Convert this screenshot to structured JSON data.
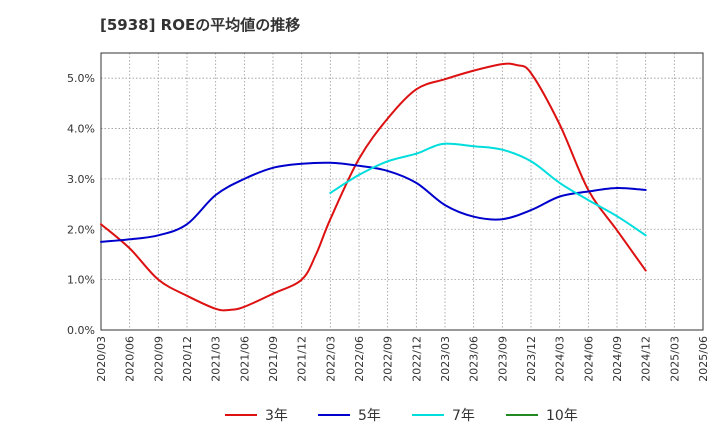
{
  "chart_data": {
    "type": "line",
    "title": "[5938]  ROEの平均値の推移",
    "xlabel": "",
    "ylabel": "",
    "ylim": [
      0,
      5.5
    ],
    "yticks": [
      0,
      1,
      2,
      3,
      4,
      5
    ],
    "ytick_labels": [
      "0.0%",
      "1.0%",
      "2.0%",
      "3.0%",
      "4.0%",
      "5.0%"
    ],
    "x_tick_labels": [
      "2020/03",
      "2020/06",
      "2020/09",
      "2020/12",
      "2021/03",
      "2021/06",
      "2021/09",
      "2021/12",
      "2022/03",
      "2022/06",
      "2022/09",
      "2022/12",
      "2023/03",
      "2023/06",
      "2023/09",
      "2023/12",
      "2024/03",
      "2024/06",
      "2024/09",
      "2024/12",
      "2025/03",
      "2025/06"
    ],
    "grid": true,
    "legend_position": "bottom",
    "series": [
      {
        "name": "3年",
        "color": "#dd1111",
        "points": [
          [
            0,
            2.1
          ],
          [
            1,
            1.62
          ],
          [
            2,
            1.0
          ],
          [
            3,
            0.68
          ],
          [
            4,
            0.42
          ],
          [
            4.5,
            0.4
          ],
          [
            5,
            0.46
          ],
          [
            6,
            0.72
          ],
          [
            7,
            1.0
          ],
          [
            7.5,
            1.5
          ],
          [
            8,
            2.2
          ],
          [
            9,
            3.4
          ],
          [
            10,
            4.2
          ],
          [
            11,
            4.78
          ],
          [
            12,
            4.98
          ],
          [
            13,
            5.15
          ],
          [
            14,
            5.28
          ],
          [
            14.5,
            5.26
          ],
          [
            15,
            5.1
          ],
          [
            16,
            4.08
          ],
          [
            17,
            2.78
          ],
          [
            18,
            1.98
          ],
          [
            19,
            1.18
          ]
        ]
      },
      {
        "name": "5年",
        "color": "#0000cc",
        "points": [
          [
            0,
            1.75
          ],
          [
            1,
            1.8
          ],
          [
            2,
            1.88
          ],
          [
            3,
            2.1
          ],
          [
            4,
            2.68
          ],
          [
            5,
            3.0
          ],
          [
            6,
            3.22
          ],
          [
            7,
            3.3
          ],
          [
            8,
            3.32
          ],
          [
            9,
            3.26
          ],
          [
            10,
            3.16
          ],
          [
            11,
            2.92
          ],
          [
            12,
            2.48
          ],
          [
            13,
            2.25
          ],
          [
            14,
            2.2
          ],
          [
            15,
            2.38
          ],
          [
            16,
            2.65
          ],
          [
            17,
            2.75
          ],
          [
            18,
            2.82
          ],
          [
            19,
            2.78
          ]
        ]
      },
      {
        "name": "7年",
        "color": "#00dddd",
        "points": [
          [
            8,
            2.72
          ],
          [
            9,
            3.08
          ],
          [
            10,
            3.35
          ],
          [
            11,
            3.5
          ],
          [
            11.5,
            3.62
          ],
          [
            12,
            3.7
          ],
          [
            13,
            3.65
          ],
          [
            14,
            3.58
          ],
          [
            15,
            3.35
          ],
          [
            16,
            2.92
          ],
          [
            17,
            2.58
          ],
          [
            18,
            2.26
          ],
          [
            19,
            1.88
          ]
        ]
      },
      {
        "name": "10年",
        "color": "#228822",
        "points": []
      }
    ]
  }
}
